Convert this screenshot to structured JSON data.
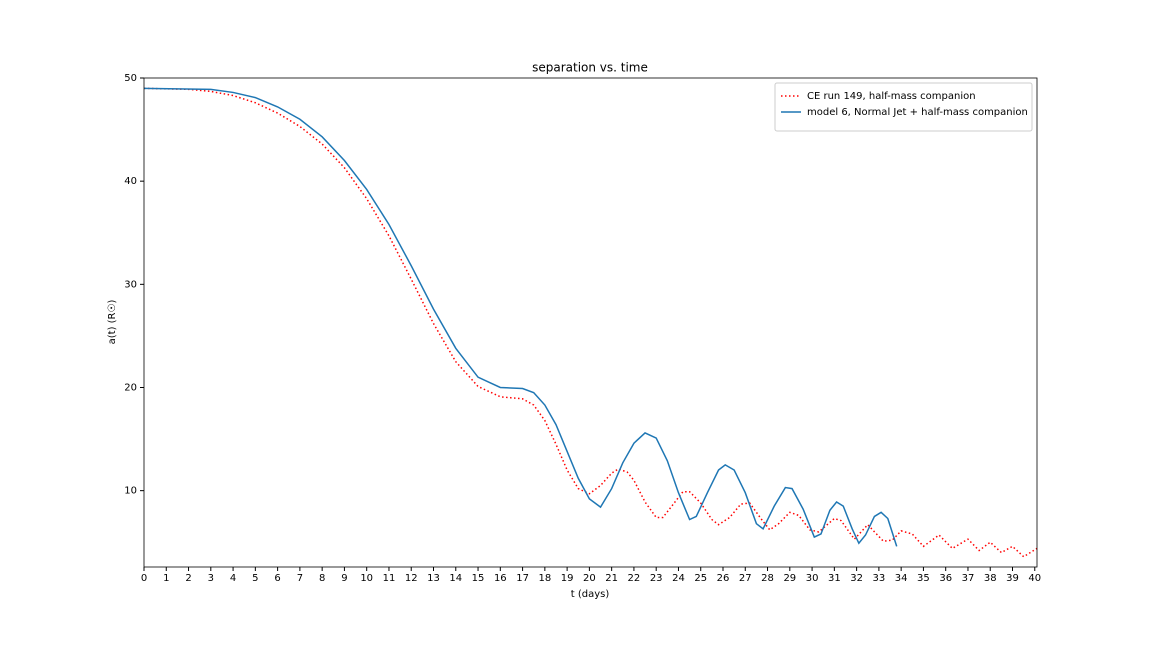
{
  "chart_data": {
    "type": "line",
    "title": "separation vs. time",
    "xlabel": "t (days)",
    "ylabel": "a(t) (R☉)",
    "xlim": [
      0,
      40.1
    ],
    "ylim": [
      2.6,
      50
    ],
    "xticks": [
      0,
      1,
      2,
      3,
      4,
      5,
      6,
      7,
      8,
      9,
      10,
      11,
      12,
      13,
      14,
      15,
      16,
      17,
      18,
      19,
      20,
      21,
      22,
      23,
      24,
      25,
      26,
      27,
      28,
      29,
      30,
      31,
      32,
      33,
      34,
      35,
      36,
      37,
      38,
      39,
      40
    ],
    "yticks": [
      10,
      20,
      30,
      40,
      50
    ],
    "legend": "upper right",
    "grid": false,
    "series": [
      {
        "name": "CE run 149, half-mass companion",
        "color": "#ff0000",
        "style": "dotted",
        "x": [
          0,
          2,
          3,
          4,
          5,
          6,
          7,
          8,
          9,
          10,
          11,
          12,
          13,
          14,
          15,
          16,
          17,
          17.5,
          18,
          18.5,
          19,
          19.5,
          20,
          20.5,
          21,
          21.3,
          21.7,
          22,
          22.5,
          23,
          23.3,
          23.7,
          24.2,
          24.5,
          25,
          25.5,
          25.8,
          26.3,
          26.8,
          27.2,
          27.7,
          28.1,
          28.5,
          29,
          29.4,
          29.9,
          30.3,
          31,
          31.3,
          31.9,
          32.5,
          33.2,
          33.6,
          34,
          34.5,
          35,
          35.7,
          36.3,
          37,
          37.5,
          38,
          38.5,
          39,
          39.5,
          40.1
        ],
        "values": [
          49,
          48.9,
          48.7,
          48.3,
          47.6,
          46.6,
          45.3,
          43.6,
          41.3,
          38.3,
          34.7,
          30.5,
          26.2,
          22.5,
          20.1,
          19.1,
          18.9,
          18.3,
          16.8,
          14.5,
          12,
          10.2,
          9.7,
          10.5,
          11.7,
          12.1,
          11.8,
          11,
          8.9,
          7.4,
          7.4,
          8.5,
          9.9,
          9.9,
          8.8,
          7.2,
          6.7,
          7.4,
          8.7,
          8.8,
          7.3,
          6.2,
          6.8,
          7.9,
          7.6,
          6.2,
          6.0,
          7.3,
          7.1,
          5.3,
          6.7,
          5.1,
          5.2,
          6.1,
          5.8,
          4.6,
          5.7,
          4.4,
          5.3,
          4.2,
          5.0,
          4.0,
          4.6,
          3.6,
          4.4
        ]
      },
      {
        "name": "model 6, Normal Jet + half-mass companion",
        "color": "#1f77b4",
        "style": "solid",
        "x": [
          0,
          3,
          4,
          5,
          6,
          7,
          8,
          9,
          10,
          11,
          12,
          13,
          14,
          15,
          16,
          17,
          17.5,
          18,
          18.5,
          19,
          19.5,
          20,
          20.5,
          21,
          21.5,
          22,
          22.5,
          23,
          23.5,
          24,
          24.5,
          24.8,
          25.3,
          25.8,
          26.1,
          26.5,
          27,
          27.5,
          27.8,
          28.3,
          28.8,
          29.1,
          29.6,
          30.1,
          30.4,
          30.8,
          31.1,
          31.4,
          31.8,
          32.1,
          32.4,
          32.8,
          33.1,
          33.4,
          33.8
        ],
        "values": [
          49,
          48.9,
          48.6,
          48.1,
          47.2,
          46,
          44.3,
          42,
          39.2,
          35.8,
          31.8,
          27.6,
          23.8,
          21,
          20,
          19.9,
          19.5,
          18.3,
          16.4,
          13.8,
          11.2,
          9.2,
          8.4,
          10.2,
          12.7,
          14.6,
          15.6,
          15.1,
          12.9,
          9.8,
          7.2,
          7.5,
          9.8,
          12,
          12.5,
          12,
          9.8,
          6.8,
          6.3,
          8.5,
          10.3,
          10.2,
          8.2,
          5.5,
          5.8,
          8.1,
          8.9,
          8.5,
          6.3,
          4.9,
          5.7,
          7.5,
          7.9,
          7.3,
          4.6
        ]
      }
    ]
  }
}
